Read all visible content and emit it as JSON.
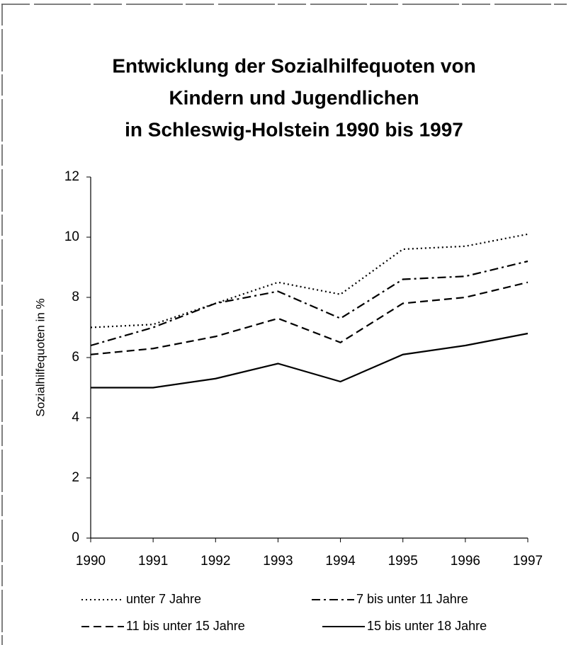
{
  "chart_data": {
    "type": "line",
    "title": [
      "Entwicklung der Sozialhilfequoten von",
      "Kindern und Jugendlichen",
      "in Schleswig-Holstein 1990 bis 1997"
    ],
    "y_label": "Sozialhilfequoten in %",
    "x": [
      1990,
      1991,
      1992,
      1993,
      1994,
      1995,
      1996,
      1997
    ],
    "xlim": [
      1990,
      1997
    ],
    "xticks": [
      1990,
      1991,
      1992,
      1993,
      1994,
      1995,
      1996,
      1997
    ],
    "ylim": [
      0,
      12
    ],
    "yticks": [
      0,
      2,
      4,
      6,
      8,
      10,
      12
    ],
    "series": [
      {
        "name": "unter 7 Jahre",
        "color": "#000000",
        "dash": "dotted",
        "values": [
          7.0,
          7.1,
          7.8,
          8.5,
          8.1,
          9.6,
          9.7,
          10.1
        ]
      },
      {
        "name": "7 bis unter 11 Jahre",
        "color": "#000000",
        "dash": "dash-dot",
        "values": [
          6.4,
          7.0,
          7.8,
          8.2,
          7.3,
          8.6,
          8.7,
          9.2
        ]
      },
      {
        "name": "11 bis unter 15 Jahre",
        "color": "#000000",
        "dash": "dashed",
        "values": [
          6.1,
          6.3,
          6.7,
          7.3,
          6.5,
          7.8,
          8.0,
          8.5
        ]
      },
      {
        "name": "15 bis unter 18 Jahre",
        "color": "#000000",
        "dash": "solid",
        "values": [
          5.0,
          5.0,
          5.3,
          5.8,
          5.2,
          6.1,
          6.4,
          6.8
        ]
      }
    ]
  }
}
